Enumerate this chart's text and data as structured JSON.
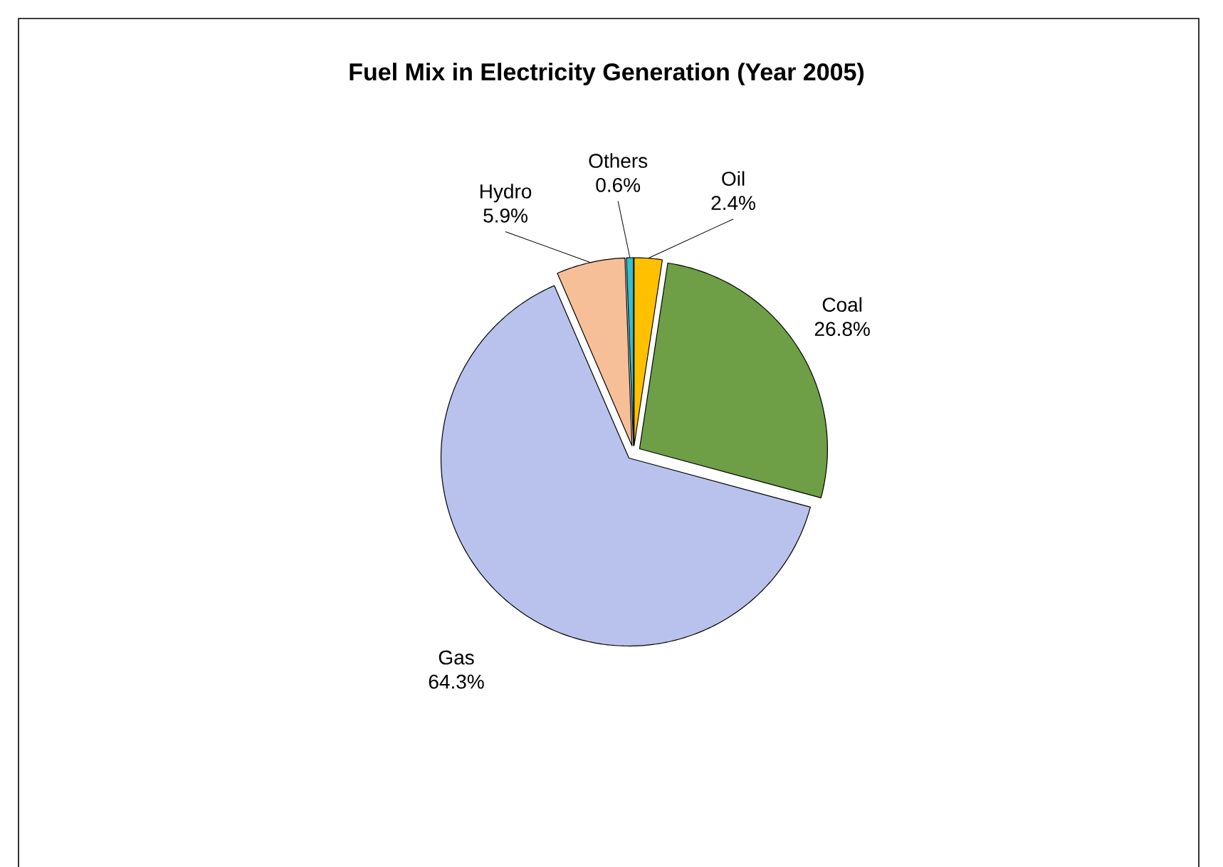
{
  "chart_data": {
    "type": "pie",
    "title": "Fuel Mix in Electricity Generation (Year 2005)",
    "categories": [
      "Oil",
      "Coal",
      "Gas",
      "Hydro",
      "Others"
    ],
    "values": [
      2.4,
      26.8,
      64.3,
      5.9,
      0.6
    ],
    "value_labels": [
      "2.4%",
      "26.8%",
      "64.3%",
      "5.9%",
      "0.6%"
    ],
    "colors": [
      "#ffc000",
      "#6e9e46",
      "#b8c2ec",
      "#f6bf98",
      "#33bfcf"
    ],
    "legend": false
  }
}
